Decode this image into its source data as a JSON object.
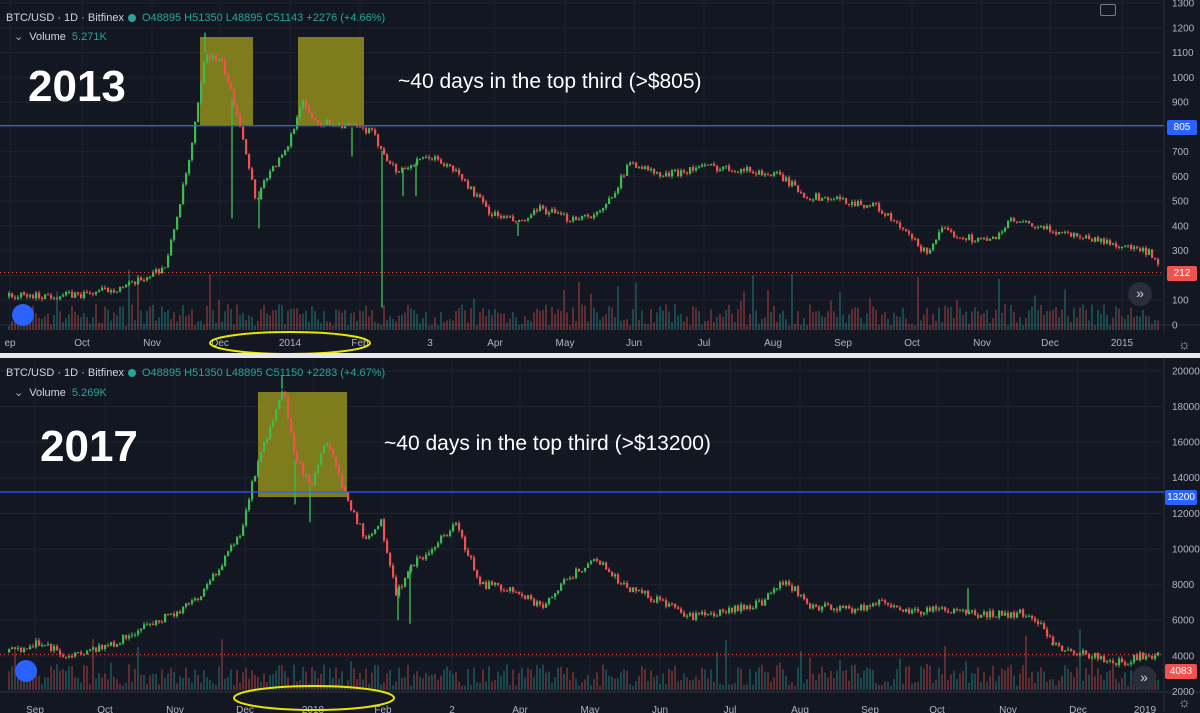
{
  "colors": {
    "background": "#131722",
    "up": "#26a69a",
    "up_bright": "#3fb950",
    "down": "#ef5350",
    "level_line": "#2962ff",
    "highlight": "#a8a31a",
    "ellipse": "#e6e600",
    "axis_text": "#b2b5be"
  },
  "panels": [
    {
      "header": {
        "symbol": "BTC/USD · 1D · Bitfinex",
        "ohlc": "O48895 H51350 L48895 C51143 +2276 (+4.66%)",
        "volume_label": "Volume",
        "volume_value": "5.271K"
      },
      "big_year": "2013",
      "annotation": "~40 days in the top third (>$805)",
      "level_badge": "805",
      "last_price_badge": "212",
      "x_axis_labels": [
        "ep",
        "Oct",
        "Nov",
        "Dec",
        "2014",
        "Feb",
        "3",
        "Apr",
        "May",
        "Jun",
        "Jul",
        "Aug",
        "Sep",
        "Oct",
        "Nov",
        "Dec",
        "2015"
      ],
      "y_axis_labels": [
        "1300",
        "1200",
        "1100",
        "1000",
        "900",
        "800",
        "700",
        "600",
        "500",
        "400",
        "300",
        "200",
        "100",
        "0"
      ]
    },
    {
      "header": {
        "symbol": "BTC/USD · 1D · Bitfinex",
        "ohlc": "O48895 H51350 L48895 C51150 +2283 (+4.67%)",
        "volume_label": "Volume",
        "volume_value": "5.269K"
      },
      "big_year": "2017",
      "annotation": "~40 days in the top third (>$13200)",
      "level_badge": "13200",
      "last_price_badge": "4083",
      "x_axis_labels": [
        "Sep",
        "Oct",
        "Nov",
        "Dec",
        "2018",
        "Feb",
        "2",
        "Apr",
        "May",
        "Jun",
        "Jul",
        "Aug",
        "Sep",
        "Oct",
        "Nov",
        "Dec",
        "2019"
      ],
      "y_axis_labels": [
        "20000",
        "18000",
        "16000",
        "14000",
        "12000",
        "10000",
        "8000",
        "6000",
        "4000",
        "2000"
      ]
    }
  ],
  "chart_data": [
    {
      "type": "candlestick",
      "title": "BTC/USD 1D Bitfinex (2013-2014)",
      "unit": "USD",
      "ylim": [
        0,
        1300
      ],
      "level": 805,
      "last": 212,
      "x": [
        "Sep",
        "Oct",
        "Nov",
        "Dec",
        "2014",
        "Feb",
        "Mar",
        "Apr",
        "May",
        "Jun",
        "Jul",
        "Aug",
        "Sep",
        "Oct",
        "Nov",
        "Dec",
        "2015"
      ],
      "approx_close": [
        120,
        125,
        210,
        900,
        800,
        650,
        600,
        450,
        460,
        650,
        620,
        500,
        480,
        380,
        380,
        320,
        212
      ]
    },
    {
      "type": "candlestick",
      "title": "BTC/USD 1D Bitfinex (2017-2018)",
      "unit": "USD",
      "ylim": [
        2000,
        20500
      ],
      "level": 13200,
      "last": 4083,
      "x": [
        "Sep",
        "Oct",
        "Nov",
        "Dec",
        "2018",
        "Feb",
        "Mar",
        "Apr",
        "May",
        "Jun",
        "Jul",
        "Aug",
        "Sep",
        "Oct",
        "Nov",
        "Dec",
        "2019"
      ],
      "approx_close": [
        4500,
        4800,
        7000,
        14000,
        15000,
        9000,
        10500,
        7000,
        9000,
        7000,
        6500,
        7000,
        6500,
        6500,
        6300,
        3800,
        4083
      ]
    }
  ]
}
